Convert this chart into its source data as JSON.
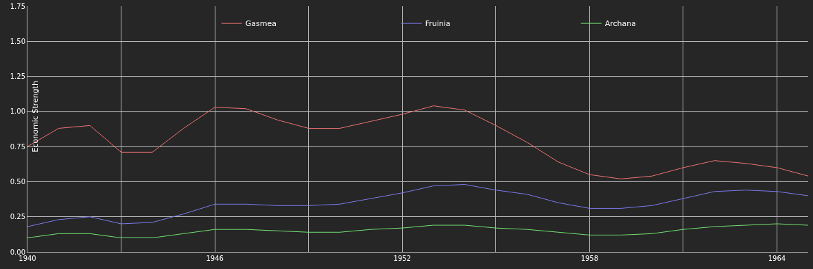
{
  "chart_data": {
    "type": "line",
    "ylabel": "Economic Strength",
    "x": [
      1940,
      1941,
      1942,
      1943,
      1944,
      1945,
      1946,
      1947,
      1948,
      1949,
      1950,
      1951,
      1952,
      1953,
      1954,
      1955,
      1956,
      1957,
      1958,
      1959,
      1960,
      1961,
      1962,
      1963,
      1964,
      1965
    ],
    "series": [
      {
        "name": "Gasmea",
        "color": "#f07373",
        "values": [
          0.75,
          0.88,
          0.9,
          0.71,
          0.71,
          0.88,
          1.03,
          1.02,
          0.94,
          0.88,
          0.88,
          0.93,
          0.98,
          1.04,
          1.01,
          0.9,
          0.78,
          0.64,
          0.55,
          0.52,
          0.54,
          0.6,
          0.65,
          0.63,
          0.6,
          0.54
        ]
      },
      {
        "name": "Fruinia",
        "color": "#7b7bef",
        "values": [
          0.18,
          0.23,
          0.25,
          0.2,
          0.21,
          0.27,
          0.34,
          0.34,
          0.33,
          0.33,
          0.34,
          0.38,
          0.42,
          0.47,
          0.48,
          0.44,
          0.41,
          0.35,
          0.31,
          0.31,
          0.33,
          0.38,
          0.43,
          0.44,
          0.43,
          0.4
        ]
      },
      {
        "name": "Archana",
        "color": "#73e373",
        "values": [
          0.1,
          0.13,
          0.13,
          0.1,
          0.1,
          0.13,
          0.16,
          0.16,
          0.15,
          0.14,
          0.14,
          0.16,
          0.17,
          0.19,
          0.19,
          0.17,
          0.16,
          0.14,
          0.12,
          0.12,
          0.13,
          0.16,
          0.18,
          0.19,
          0.2,
          0.19
        ]
      }
    ],
    "xlim": [
      1940,
      1965
    ],
    "xticks": [
      1940,
      {
        "value": 1943,
        "label": null
      },
      1946,
      {
        "value": 1949,
        "label": null
      },
      1952,
      {
        "value": 1955,
        "label": null
      },
      1958,
      {
        "value": 1961,
        "label": null
      },
      1964
    ],
    "ylim": [
      0,
      1.75
    ],
    "yticks": [
      {
        "value": 0,
        "label": "0.00"
      },
      {
        "value": 0.25,
        "label": "0.25"
      },
      {
        "value": 0.5,
        "label": "0.50"
      },
      {
        "value": 0.75,
        "label": "0.75"
      },
      {
        "value": 1,
        "label": "1.00"
      },
      {
        "value": 1.25,
        "label": "1.25"
      },
      {
        "value": 1.5,
        "label": "1.50"
      },
      {
        "value": 1.75,
        "label": "1.75"
      }
    ],
    "grid": true,
    "legend": "top",
    "marker": "none",
    "line_style": "solid"
  }
}
